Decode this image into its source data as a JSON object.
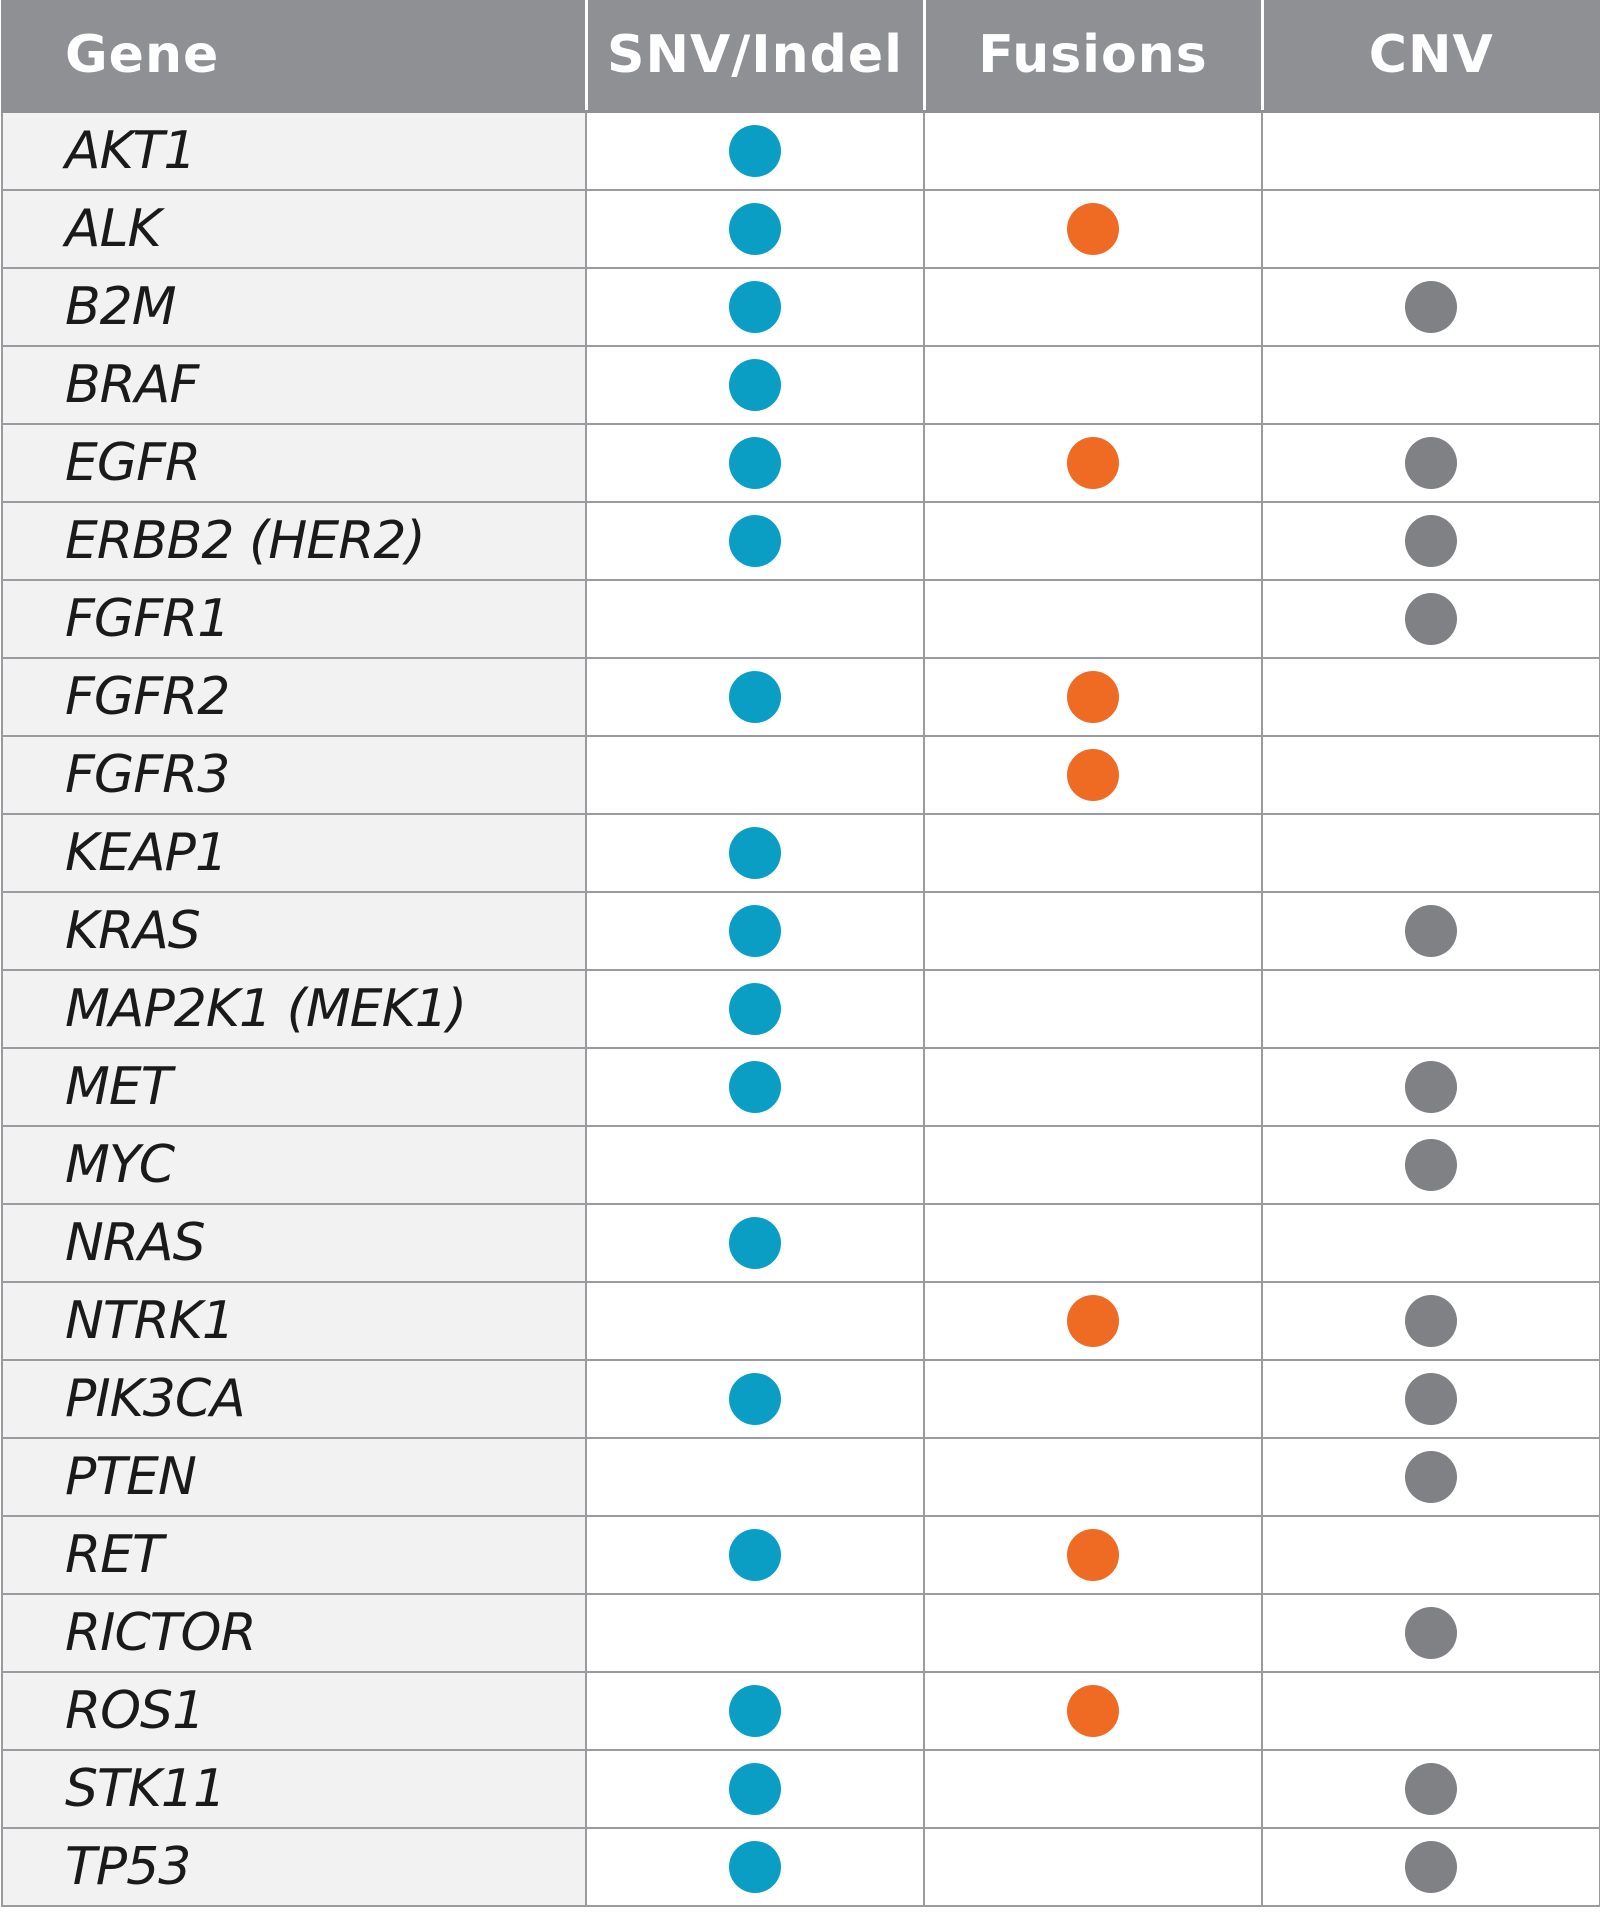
{
  "headers": {
    "gene": "Gene",
    "snv": "SNV/Indel",
    "fusions": "Fusions",
    "cnv": "CNV"
  },
  "colors": {
    "header_bg": "#8f9094",
    "gene_column_bg": "#f1f2f1",
    "snv_indel": "#0a9ec4",
    "fusions": "#ef6b24",
    "cnv": "#808184"
  },
  "rows": [
    {
      "gene": "AKT1",
      "snv": true,
      "fusion": false,
      "cnv": false
    },
    {
      "gene": "ALK",
      "snv": true,
      "fusion": true,
      "cnv": false
    },
    {
      "gene": "B2M",
      "snv": true,
      "fusion": false,
      "cnv": true
    },
    {
      "gene": "BRAF",
      "snv": true,
      "fusion": false,
      "cnv": false
    },
    {
      "gene": "EGFR",
      "snv": true,
      "fusion": true,
      "cnv": true
    },
    {
      "gene": "ERBB2 (HER2)",
      "snv": true,
      "fusion": false,
      "cnv": true
    },
    {
      "gene": "FGFR1",
      "snv": false,
      "fusion": false,
      "cnv": true
    },
    {
      "gene": "FGFR2",
      "snv": true,
      "fusion": true,
      "cnv": false
    },
    {
      "gene": "FGFR3",
      "snv": false,
      "fusion": true,
      "cnv": false
    },
    {
      "gene": "KEAP1",
      "snv": true,
      "fusion": false,
      "cnv": false
    },
    {
      "gene": "KRAS",
      "snv": true,
      "fusion": false,
      "cnv": true
    },
    {
      "gene": "MAP2K1 (MEK1)",
      "snv": true,
      "fusion": false,
      "cnv": false
    },
    {
      "gene": "MET",
      "snv": true,
      "fusion": false,
      "cnv": true
    },
    {
      "gene": "MYC",
      "snv": false,
      "fusion": false,
      "cnv": true
    },
    {
      "gene": "NRAS",
      "snv": true,
      "fusion": false,
      "cnv": false
    },
    {
      "gene": "NTRK1",
      "snv": false,
      "fusion": true,
      "cnv": true
    },
    {
      "gene": "PIK3CA",
      "snv": true,
      "fusion": false,
      "cnv": true
    },
    {
      "gene": "PTEN",
      "snv": false,
      "fusion": false,
      "cnv": true
    },
    {
      "gene": "RET",
      "snv": true,
      "fusion": true,
      "cnv": false
    },
    {
      "gene": "RICTOR",
      "snv": false,
      "fusion": false,
      "cnv": true
    },
    {
      "gene": "ROS1",
      "snv": true,
      "fusion": true,
      "cnv": false
    },
    {
      "gene": "STK11",
      "snv": true,
      "fusion": false,
      "cnv": true
    },
    {
      "gene": "TP53",
      "snv": true,
      "fusion": false,
      "cnv": true
    }
  ]
}
